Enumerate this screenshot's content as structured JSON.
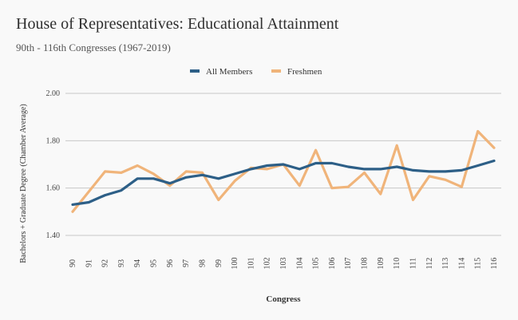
{
  "header": {
    "title": "House of Representatives: Educational Attainment",
    "subtitle": "90th - 116th Congresses (1967-2019)"
  },
  "colors": {
    "all_members": "#2d5f87",
    "freshmen": "#f0b47a",
    "grid": "#c8c8c8",
    "background": "#f9f9f9"
  },
  "chart_data": {
    "type": "line",
    "xlabel": "Congress",
    "ylabel": "Bachelors + Graduate Degree (Chamber Average)",
    "ylim": [
      1.4,
      2.0
    ],
    "yticks": [
      "1.40",
      "1.60",
      "1.80",
      "2.00"
    ],
    "grid": true,
    "legend_position": "top-center",
    "categories": [
      "90",
      "91",
      "92",
      "93",
      "94",
      "95",
      "96",
      "97",
      "98",
      "99",
      "100",
      "101",
      "102",
      "103",
      "104",
      "105",
      "106",
      "107",
      "108",
      "109",
      "110",
      "111",
      "112",
      "113",
      "114",
      "115",
      "116"
    ],
    "series": [
      {
        "name": "All Members",
        "color": "#2d5f87",
        "values": [
          1.53,
          1.54,
          1.57,
          1.59,
          1.64,
          1.64,
          1.62,
          1.645,
          1.655,
          1.64,
          1.66,
          1.68,
          1.695,
          1.7,
          1.68,
          1.705,
          1.705,
          1.69,
          1.68,
          1.68,
          1.69,
          1.675,
          1.67,
          1.67,
          1.675,
          1.695,
          1.715
        ]
      },
      {
        "name": "Freshmen",
        "color": "#f0b47a",
        "values": [
          1.5,
          1.585,
          1.67,
          1.665,
          1.695,
          1.66,
          1.61,
          1.67,
          1.665,
          1.55,
          1.63,
          1.685,
          1.68,
          1.7,
          1.61,
          1.76,
          1.6,
          1.605,
          1.665,
          1.575,
          1.78,
          1.55,
          1.65,
          1.635,
          1.605,
          1.84,
          1.77
        ]
      }
    ]
  }
}
